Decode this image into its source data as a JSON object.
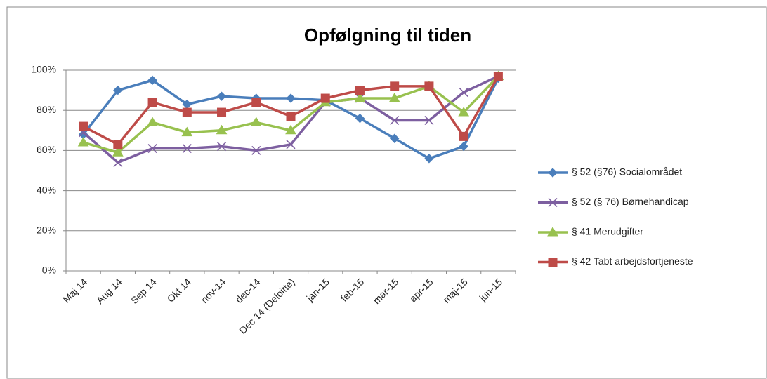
{
  "chart_data": {
    "type": "line",
    "title": "Opfølgning til tiden",
    "categories": [
      "Maj 14",
      "Aug 14",
      "Sep 14",
      "Okt 14",
      "nov-14",
      "dec-14",
      "Dec 14 (Deloitte)",
      "jan-15",
      "feb-15",
      "mar-15",
      "apr-15",
      "maj-15",
      "jun-15"
    ],
    "series": [
      {
        "name": "§ 52 (§76) Socialområdet",
        "color": "#4a7ebb",
        "marker": "diamond",
        "values": [
          68,
          90,
          95,
          83,
          87,
          86,
          86,
          85,
          76,
          66,
          56,
          62,
          96
        ]
      },
      {
        "name": "§ 52 (§ 76) Børnehandicap",
        "color": "#7d5fa0",
        "marker": "x",
        "values": [
          69,
          54,
          61,
          61,
          62,
          60,
          63,
          84,
          86,
          75,
          75,
          89,
          97
        ]
      },
      {
        "name": "§ 41 Merudgifter",
        "color": "#98c14f",
        "marker": "triangle",
        "values": [
          64,
          59,
          74,
          69,
          70,
          74,
          70,
          84,
          86,
          86,
          92,
          79,
          97
        ]
      },
      {
        "name": "§ 42 Tabt arbejdsfortjeneste",
        "color": "#be4b48",
        "marker": "square",
        "values": [
          72,
          63,
          84,
          79,
          79,
          84,
          77,
          86,
          90,
          92,
          92,
          67,
          97
        ]
      }
    ],
    "ylim": [
      0,
      100
    ],
    "yticks": [
      {
        "value": 0,
        "label": "0%"
      },
      {
        "value": 20,
        "label": "20%"
      },
      {
        "value": 40,
        "label": "40%"
      },
      {
        "value": 60,
        "label": "60%"
      },
      {
        "value": 80,
        "label": "80%"
      },
      {
        "value": 100,
        "label": "100%"
      }
    ],
    "grid": true,
    "legend": "right"
  }
}
